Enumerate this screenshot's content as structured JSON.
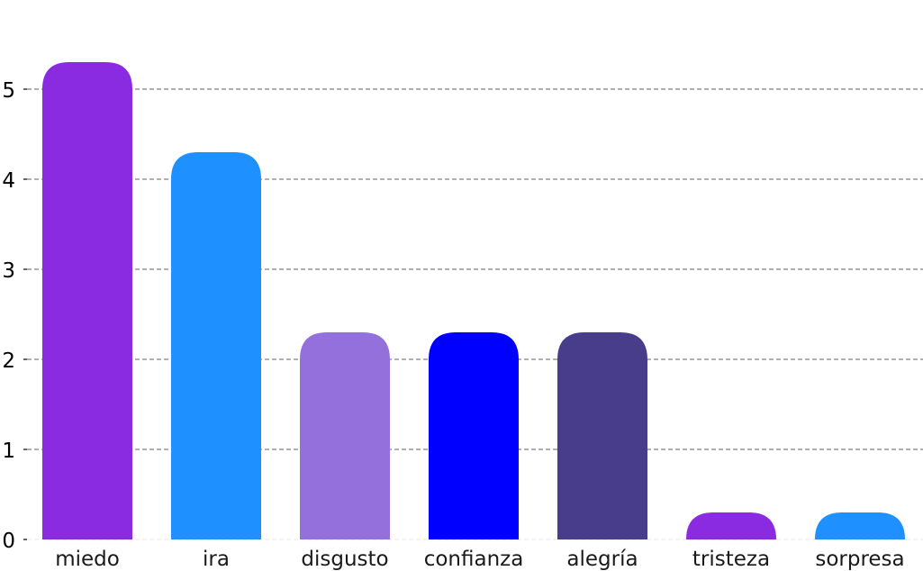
{
  "chart_data": {
    "type": "bar",
    "categories": [
      "miedo",
      "ira",
      "disgusto",
      "confianza",
      "alegría",
      "tristeza",
      "sorpresa"
    ],
    "values": [
      5.3,
      4.3,
      2.3,
      2.3,
      2.3,
      0.3,
      0.3
    ],
    "colors": [
      "#8a2be2",
      "#1e90ff",
      "#9370db",
      "#0000ff",
      "#483d8b",
      "#8a2be2",
      "#1e90ff"
    ],
    "title": "",
    "xlabel": "",
    "ylabel": "",
    "ylim": [
      0,
      5.5
    ],
    "yticks": [
      0,
      1,
      2,
      3,
      4,
      5
    ],
    "grid": true,
    "legend": "none"
  }
}
